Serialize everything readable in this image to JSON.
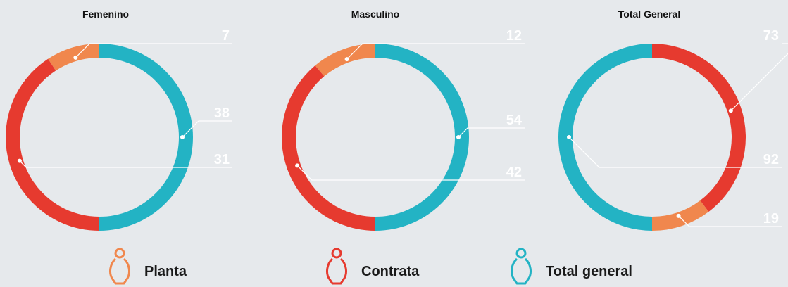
{
  "chart_data": [
    {
      "type": "pie",
      "title": "Femenino",
      "categories": [
        "Total general",
        "Contrata",
        "Planta"
      ],
      "values": [
        38,
        31,
        7
      ]
    },
    {
      "type": "pie",
      "title": "Masculino",
      "categories": [
        "Total general",
        "Contrata",
        "Planta"
      ],
      "values": [
        54,
        42,
        12
      ]
    },
    {
      "type": "pie",
      "title": "Total General",
      "categories": [
        "Contrata",
        "Planta",
        "Total general"
      ],
      "values": [
        73,
        19,
        92
      ]
    }
  ],
  "legend": [
    {
      "name": "Planta",
      "color": "#f0874d"
    },
    {
      "name": "Contrata",
      "color": "#e63a2f"
    },
    {
      "name": "Total general",
      "color": "#23b3c4"
    }
  ]
}
